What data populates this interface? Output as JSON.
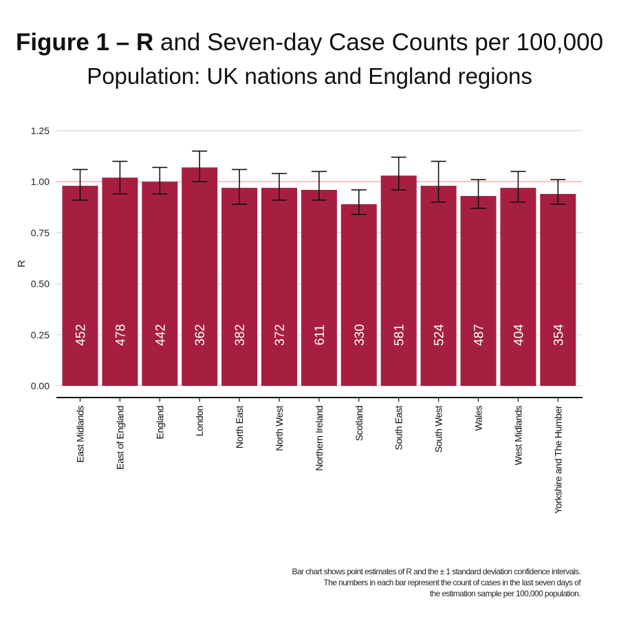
{
  "title": {
    "line1_bold": "Figure 1 – R",
    "line1_rest": " and Seven-day Case Counts per 100,000",
    "line2": "Population: UK nations and England regions"
  },
  "footnote": {
    "line1": "Bar chart shows point estimates of R and the ± 1 standard deviation confidence intervals.",
    "line2": "The numbers in each bar represent the count of cases in the last seven days of",
    "line3": "the estimation sample per 100,000 population."
  },
  "colors": {
    "bar": "#A61F41",
    "reference_line": "#F2B8B8",
    "grid": "#D6D6D6",
    "error_bar": "#111111",
    "bar_label": "#FFFFFF"
  },
  "chart_data": {
    "type": "bar",
    "ylabel": "R",
    "xlabel": "",
    "ylim": [
      0,
      1.25
    ],
    "yticks": [
      "0.00",
      "0.25",
      "0.50",
      "0.75",
      "1.00",
      "1.25"
    ],
    "ytick_values": [
      0,
      0.25,
      0.5,
      0.75,
      1.0,
      1.25
    ],
    "reference_line": 1.0,
    "grid": true,
    "categories": [
      "East Midlands",
      "East of England",
      "England",
      "London",
      "North East",
      "North West",
      "Northern Ireland",
      "Scotland",
      "South East",
      "South West",
      "Wales",
      "West Midlands",
      "Yorkshire and The Humber"
    ],
    "values": [
      0.98,
      1.02,
      1.0,
      1.07,
      0.97,
      0.97,
      0.96,
      0.89,
      1.03,
      0.98,
      0.93,
      0.97,
      0.94
    ],
    "error_low": [
      0.91,
      0.94,
      0.94,
      1.0,
      0.89,
      0.91,
      0.91,
      0.84,
      0.96,
      0.9,
      0.87,
      0.9,
      0.89
    ],
    "error_high": [
      1.06,
      1.1,
      1.07,
      1.15,
      1.06,
      1.04,
      1.05,
      0.96,
      1.12,
      1.1,
      1.01,
      1.05,
      1.01
    ],
    "bar_labels": [
      "452",
      "478",
      "442",
      "362",
      "382",
      "372",
      "611",
      "330",
      "581",
      "524",
      "487",
      "404",
      "354"
    ]
  }
}
